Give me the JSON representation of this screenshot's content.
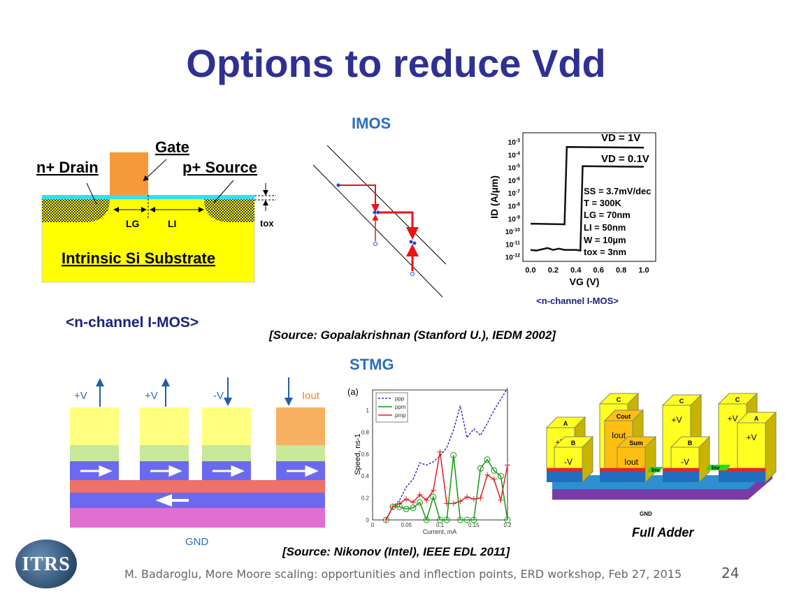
{
  "title": "Options to reduce Vdd",
  "imos": {
    "label": "IMOS",
    "diagram": {
      "gate": "Gate",
      "drain": "n+ Drain",
      "source": "p+ Source",
      "lg": "LG",
      "li": "LI",
      "tox": "tox",
      "substrate": "Intrinsic Si Substrate",
      "caption": "<n-channel I-MOS>"
    },
    "iv_caption": "<n-channel I-MOS>",
    "params": [
      "SS = 3.7mV/dec",
      "T = 300K",
      "LG = 70nm",
      "LI = 50nm",
      "W = 10µm",
      "tox = 3nm"
    ],
    "source": "[Source: Gopalakrishnan (Stanford U.), IEDM 2002]"
  },
  "stmg": {
    "label": "STMG",
    "diagram": {
      "v1": "+V",
      "v2": "+V",
      "v3": "-V",
      "iout": "Iout",
      "gnd": "GND"
    },
    "adder": {
      "caption": "Full Adder",
      "labels": [
        "A",
        "B",
        "C",
        "Cout",
        "Sum",
        "B",
        "C",
        "C",
        "A",
        "Inv",
        "Inv",
        "GND"
      ],
      "pv": "+V",
      "mv": "-V",
      "iout": "Iout"
    },
    "source": "[Source: Nikonov (Intel), IEEE EDL 2011]"
  },
  "footer": "M. Badaroglu, More Moore scaling: opportunities and inflection points, ERD workshop, Feb 27, 2015",
  "page_number": "24",
  "logo_text": "ITRS",
  "colors": {
    "title": "#2e3192",
    "section": "#2a6ebd",
    "ppp": "#3333cc",
    "ppm": "#119911",
    "pmp": "#dd2222"
  },
  "chart_data": [
    {
      "type": "line",
      "title": "",
      "xlabel": "VG (V)",
      "ylabel": "ID (A/µm)",
      "yscale": "log",
      "xlim": [
        0,
        1.0
      ],
      "ylim_log10": [
        -12,
        -3
      ],
      "xticks": [
        "0.0",
        "0.2",
        "0.4",
        "0.6",
        "0.8",
        "1.0"
      ],
      "yticks": [
        "10-3",
        "10-4",
        "10-5",
        "10-6",
        "10-7",
        "10-8",
        "10-9",
        "10-10",
        "10-11",
        "10-12"
      ],
      "series": [
        {
          "name": "VD = 1V",
          "x": [
            0,
            0.3,
            0.32,
            1.0
          ],
          "log10_y": [
            -9.4,
            -9.45,
            -3.4,
            -3.45
          ]
        },
        {
          "name": "VD = 0.1V",
          "x": [
            0,
            0.05,
            0.1,
            0.15,
            0.2,
            0.25,
            0.3,
            0.35,
            0.4,
            0.44,
            0.46,
            1.0
          ],
          "log10_y": [
            -11.45,
            -11.5,
            -11.4,
            -11.3,
            -11.45,
            -11.35,
            -11.45,
            -11.45,
            -11.45,
            -11.5,
            -4.9,
            -4.95
          ]
        }
      ]
    },
    {
      "type": "line",
      "panel": "(a)",
      "xlabel": "Current, mA",
      "ylabel": "Speed, ns-1",
      "xlim": [
        0,
        0.2
      ],
      "ylim": [
        0,
        1.2
      ],
      "xticks": [
        "0",
        "0.05",
        "0.1",
        "0.15",
        "0.2"
      ],
      "yticks": [
        "0",
        "0.2",
        "0.4",
        "0.6",
        "0.8",
        "1"
      ],
      "legend": "top-left",
      "x": [
        0.02,
        0.03,
        0.04,
        0.05,
        0.06,
        0.07,
        0.08,
        0.09,
        0.1,
        0.11,
        0.12,
        0.13,
        0.14,
        0.15,
        0.16,
        0.17,
        0.18,
        0.19,
        0.2
      ],
      "series": [
        {
          "name": "ppp",
          "style": "dashed",
          "values": [
            0,
            0.12,
            0.18,
            0.3,
            0.37,
            0.52,
            0.5,
            0.53,
            0.58,
            0.66,
            0.82,
            1.04,
            0.75,
            0.83,
            0.77,
            0.88,
            1.0,
            1.1,
            1.2
          ]
        },
        {
          "name": "ppm",
          "style": "circle",
          "values": [
            0,
            0.12,
            0.12,
            0.1,
            0.11,
            0.16,
            0,
            0.21,
            0,
            0,
            0.59,
            0,
            0,
            0,
            0.47,
            0.55,
            0.45,
            0.4,
            0
          ]
        },
        {
          "name": "pmp",
          "style": "plus",
          "values": [
            0,
            0.12,
            0.15,
            0.19,
            0.16,
            0.23,
            0.18,
            0.27,
            0.62,
            0.15,
            0.15,
            0.17,
            0.21,
            0.19,
            0.2,
            0.41,
            0.37,
            0.18,
            0.5
          ]
        }
      ]
    }
  ]
}
